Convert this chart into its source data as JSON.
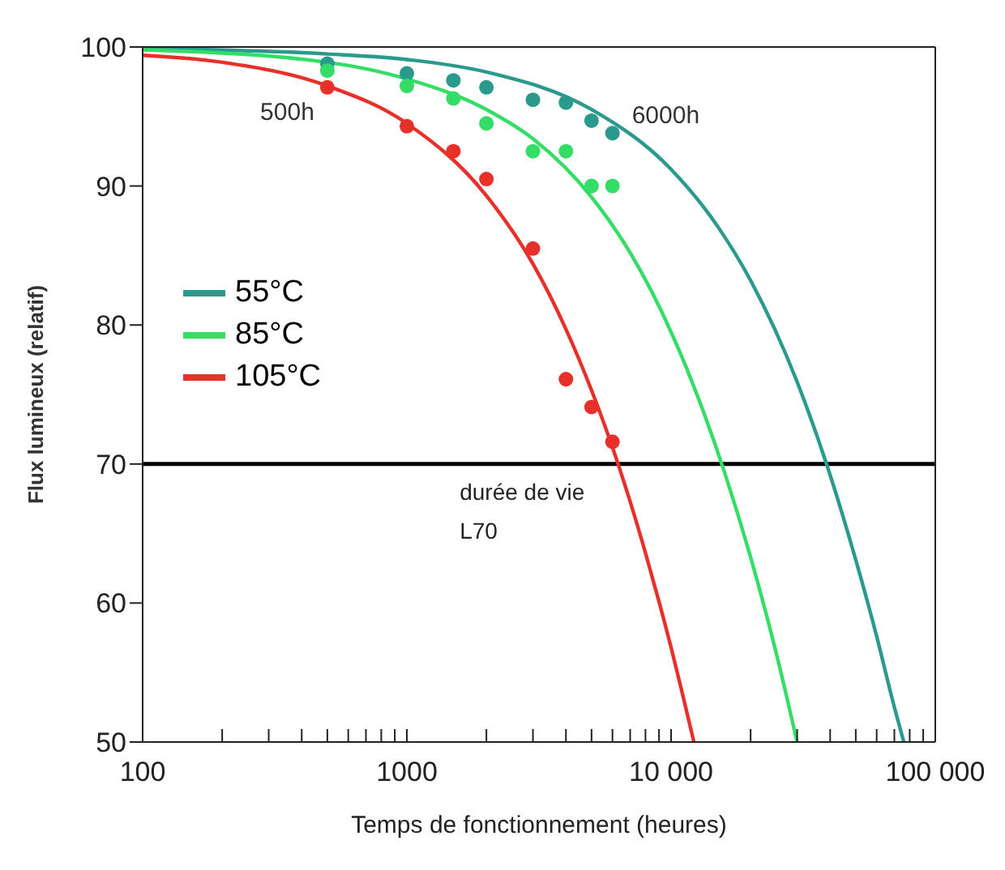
{
  "chart_data": {
    "type": "line",
    "xlabel": "Temps de fonctionnement (heures)",
    "ylabel": "Flux lumineux (relatif)",
    "log": "x",
    "legend": "top left",
    "xlim": [
      100,
      100000
    ],
    "ylim": [
      50,
      100
    ],
    "xticks": [
      100,
      {
        "value": 200,
        "label": null
      },
      {
        "value": 300,
        "label": null
      },
      {
        "value": 400,
        "label": null
      },
      {
        "value": 500,
        "label": null
      },
      {
        "value": 600,
        "label": null
      },
      {
        "value": 700,
        "label": null
      },
      {
        "value": 800,
        "label": null
      },
      {
        "value": 900,
        "label": null
      },
      1000,
      {
        "value": 2000,
        "label": null
      },
      {
        "value": 3000,
        "label": null
      },
      {
        "value": 4000,
        "label": null
      },
      {
        "value": 5000,
        "label": null
      },
      {
        "value": 6000,
        "label": null
      },
      {
        "value": 7000,
        "label": null
      },
      {
        "value": 8000,
        "label": null
      },
      {
        "value": 9000,
        "label": null
      },
      {
        "value": 10000,
        "label": "10 000"
      },
      {
        "value": 20000,
        "label": null
      },
      {
        "value": 30000,
        "label": null
      },
      {
        "value": 40000,
        "label": null
      },
      {
        "value": 50000,
        "label": null
      },
      {
        "value": 60000,
        "label": null
      },
      {
        "value": 70000,
        "label": null
      },
      {
        "value": 80000,
        "label": null
      },
      {
        "value": 90000,
        "label": null
      },
      {
        "value": 100000,
        "label": "100 000"
      }
    ],
    "yticks": [
      50,
      60,
      70,
      80,
      90,
      100
    ],
    "series": [
      {
        "name": "55°C",
        "marker": "none",
        "color": "#2a9a8c",
        "x": [
          100,
          500,
          1000,
          2000,
          5000,
          10000,
          15000,
          20000,
          30000,
          40000,
          50000,
          60000,
          70000,
          76000
        ],
        "values": [
          99.9,
          99.5,
          99.1,
          98.2,
          95.5,
          91.2,
          87.1,
          83.2,
          75.9,
          69.2,
          63.1,
          57.6,
          52.5,
          50
        ]
      },
      {
        "name": "85°C",
        "marker": "none",
        "color": "#33dd66",
        "x": [
          100,
          500,
          1000,
          2000,
          3000,
          5000,
          7000,
          10000,
          13000,
          16000,
          20000,
          25000,
          30000
        ],
        "values": [
          99.8,
          98.9,
          97.7,
          95.5,
          93.4,
          89.2,
          85.2,
          79.5,
          74.2,
          69.3,
          63.3,
          56.4,
          50
        ]
      },
      {
        "name": "105°C",
        "marker": "none",
        "color": "#e8302a",
        "x": [
          100,
          200,
          500,
          1000,
          2000,
          3000,
          4000,
          5000,
          6000,
          7000,
          8000,
          9000,
          10000,
          11000,
          12200
        ],
        "values": [
          99.4,
          98.9,
          97.2,
          94.5,
          89.3,
          84.4,
          79.7,
          75.3,
          71.2,
          67.3,
          63.6,
          60.1,
          56.8,
          53.6,
          50
        ]
      },
      {
        "type": "scatter",
        "marker": "circle",
        "color": "#2a9a8c",
        "x": [
          500,
          1000,
          1500,
          2000,
          3000,
          4000,
          5000,
          6000
        ],
        "values": [
          98.8,
          98.1,
          97.6,
          97.1,
          96.2,
          96.0,
          94.7,
          93.8
        ]
      },
      {
        "type": "scatter",
        "marker": "circle",
        "color": "#33dd66",
        "x": [
          500,
          1000,
          1500,
          2000,
          3000,
          4000,
          5000,
          6000
        ],
        "values": [
          98.3,
          97.2,
          96.3,
          94.5,
          92.5,
          92.5,
          90.0,
          90.0
        ]
      },
      {
        "type": "scatter",
        "marker": "circle",
        "color": "#e8302a",
        "x": [
          500,
          1000,
          1500,
          2000,
          3000,
          4000,
          5000,
          6000
        ],
        "values": [
          97.1,
          94.3,
          92.5,
          90.5,
          85.5,
          76.1,
          74.1,
          71.6
        ]
      }
    ],
    "ref_lines": [
      {
        "axis": "y",
        "value": 70,
        "label": "durée de vie L70",
        "color": "#000000"
      }
    ],
    "annotations": [
      {
        "text": "500h",
        "x": 500,
        "y": 97.1
      },
      {
        "text": "6000h",
        "x": 6000,
        "y": 93.8
      }
    ]
  }
}
